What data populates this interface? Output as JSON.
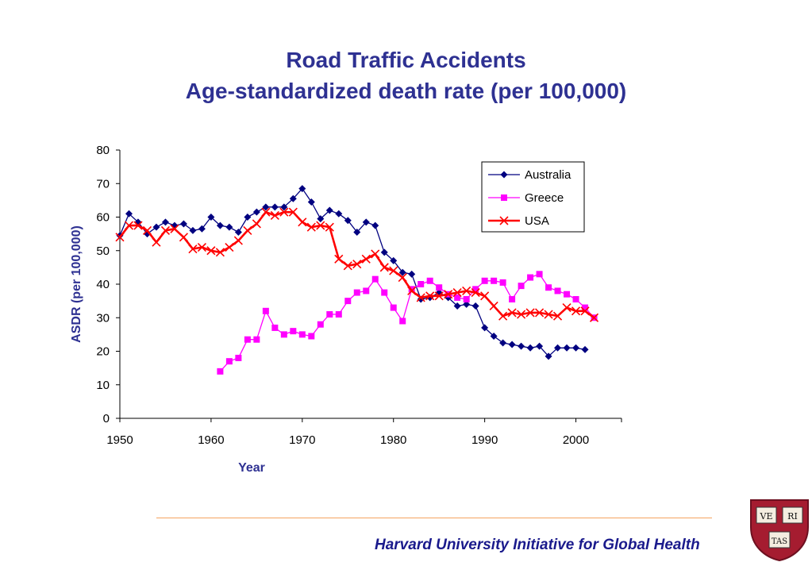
{
  "title_line1": "Road Traffic Accidents",
  "title_line2": "Age-standardized death rate (per 100,000)",
  "footer": "Harvard University Initiative for Global Health",
  "shield_text": [
    "VE",
    "RI",
    "TAS"
  ],
  "colors": {
    "title": "#2e3192",
    "australia": "#000080",
    "greece": "#ff00ff",
    "usa": "#ff0000",
    "divider": "#f4a460",
    "shield": "#a51c30"
  },
  "chart_data": {
    "type": "line",
    "xlabel": "Year",
    "ylabel": "ASDR (per 100,000)",
    "xlim": [
      1950,
      2005
    ],
    "ylim": [
      0,
      80
    ],
    "x_ticks": [
      1950,
      1960,
      1970,
      1980,
      1990,
      2000
    ],
    "y_ticks": [
      0,
      10,
      20,
      30,
      40,
      50,
      60,
      70,
      80
    ],
    "grid": false,
    "legend_position": "top-right",
    "series": [
      {
        "name": "Australia",
        "marker": "diamond",
        "color": "#000080",
        "x": [
          1950,
          1951,
          1952,
          1953,
          1954,
          1955,
          1956,
          1957,
          1958,
          1959,
          1960,
          1961,
          1962,
          1963,
          1964,
          1965,
          1966,
          1967,
          1968,
          1969,
          1970,
          1971,
          1972,
          1973,
          1974,
          1975,
          1976,
          1977,
          1978,
          1979,
          1980,
          1981,
          1982,
          1983,
          1984,
          1985,
          1986,
          1987,
          1988,
          1989,
          1990,
          1991,
          1992,
          1993,
          1994,
          1995,
          1996,
          1997,
          1998,
          1999,
          2000,
          2001
        ],
        "y": [
          54.5,
          61,
          58.5,
          55,
          57,
          58.5,
          57.5,
          58,
          56,
          56.5,
          60,
          57.5,
          57,
          55.5,
          60,
          61.5,
          63,
          63,
          63,
          65.5,
          68.5,
          64.5,
          59.5,
          62,
          61,
          59,
          55.5,
          58.5,
          57.5,
          49.5,
          47,
          43.5,
          43,
          35.5,
          36,
          37.5,
          36,
          33.5,
          34,
          33.5,
          27,
          24.5,
          22.5,
          22,
          21.5,
          21,
          21.5,
          18.5,
          21,
          21,
          21,
          20.5
        ]
      },
      {
        "name": "Greece",
        "marker": "square",
        "color": "#ff00ff",
        "x": [
          1961,
          1962,
          1963,
          1964,
          1965,
          1966,
          1967,
          1968,
          1969,
          1970,
          1971,
          1972,
          1973,
          1974,
          1975,
          1976,
          1977,
          1978,
          1979,
          1980,
          1981,
          1982,
          1983,
          1984,
          1985,
          1986,
          1987,
          1988,
          1989,
          1990,
          1991,
          1992,
          1993,
          1994,
          1995,
          1996,
          1997,
          1998,
          1999,
          2000,
          2001,
          2002
        ],
        "y": [
          14,
          17,
          18,
          23.5,
          23.5,
          32,
          27,
          25,
          26,
          25,
          24.5,
          28,
          31,
          31,
          35,
          37.5,
          38,
          41.5,
          37.5,
          33,
          29,
          38.5,
          40,
          41,
          39,
          37,
          36,
          35.5,
          38.5,
          41,
          41,
          40.5,
          35.5,
          39.5,
          42,
          43,
          39,
          38,
          37,
          35.5,
          33,
          30
        ]
      },
      {
        "name": "USA",
        "marker": "x",
        "color": "#ff0000",
        "x": [
          1950,
          1951,
          1952,
          1953,
          1954,
          1955,
          1956,
          1957,
          1958,
          1959,
          1960,
          1961,
          1962,
          1963,
          1964,
          1965,
          1966,
          1967,
          1968,
          1969,
          1970,
          1971,
          1972,
          1973,
          1974,
          1975,
          1976,
          1977,
          1978,
          1979,
          1980,
          1981,
          1982,
          1983,
          1984,
          1985,
          1986,
          1987,
          1988,
          1989,
          1990,
          1991,
          1992,
          1993,
          1994,
          1995,
          1996,
          1997,
          1998,
          1999,
          2000,
          2001,
          2002
        ],
        "y": [
          54,
          57.5,
          57.5,
          56,
          52.5,
          56,
          56.5,
          54,
          50.5,
          51,
          50,
          49.5,
          51,
          53,
          56,
          58,
          61.5,
          60.5,
          61.5,
          61.5,
          58.5,
          57,
          57.5,
          57,
          47.5,
          45.5,
          46,
          47.5,
          49,
          45,
          44,
          42,
          38,
          36,
          36.5,
          36.5,
          37,
          37.5,
          38,
          37.5,
          36.5,
          33.5,
          30.5,
          31.5,
          31,
          31.5,
          31.5,
          31,
          30.5,
          33,
          32,
          32,
          30
        ]
      }
    ]
  }
}
